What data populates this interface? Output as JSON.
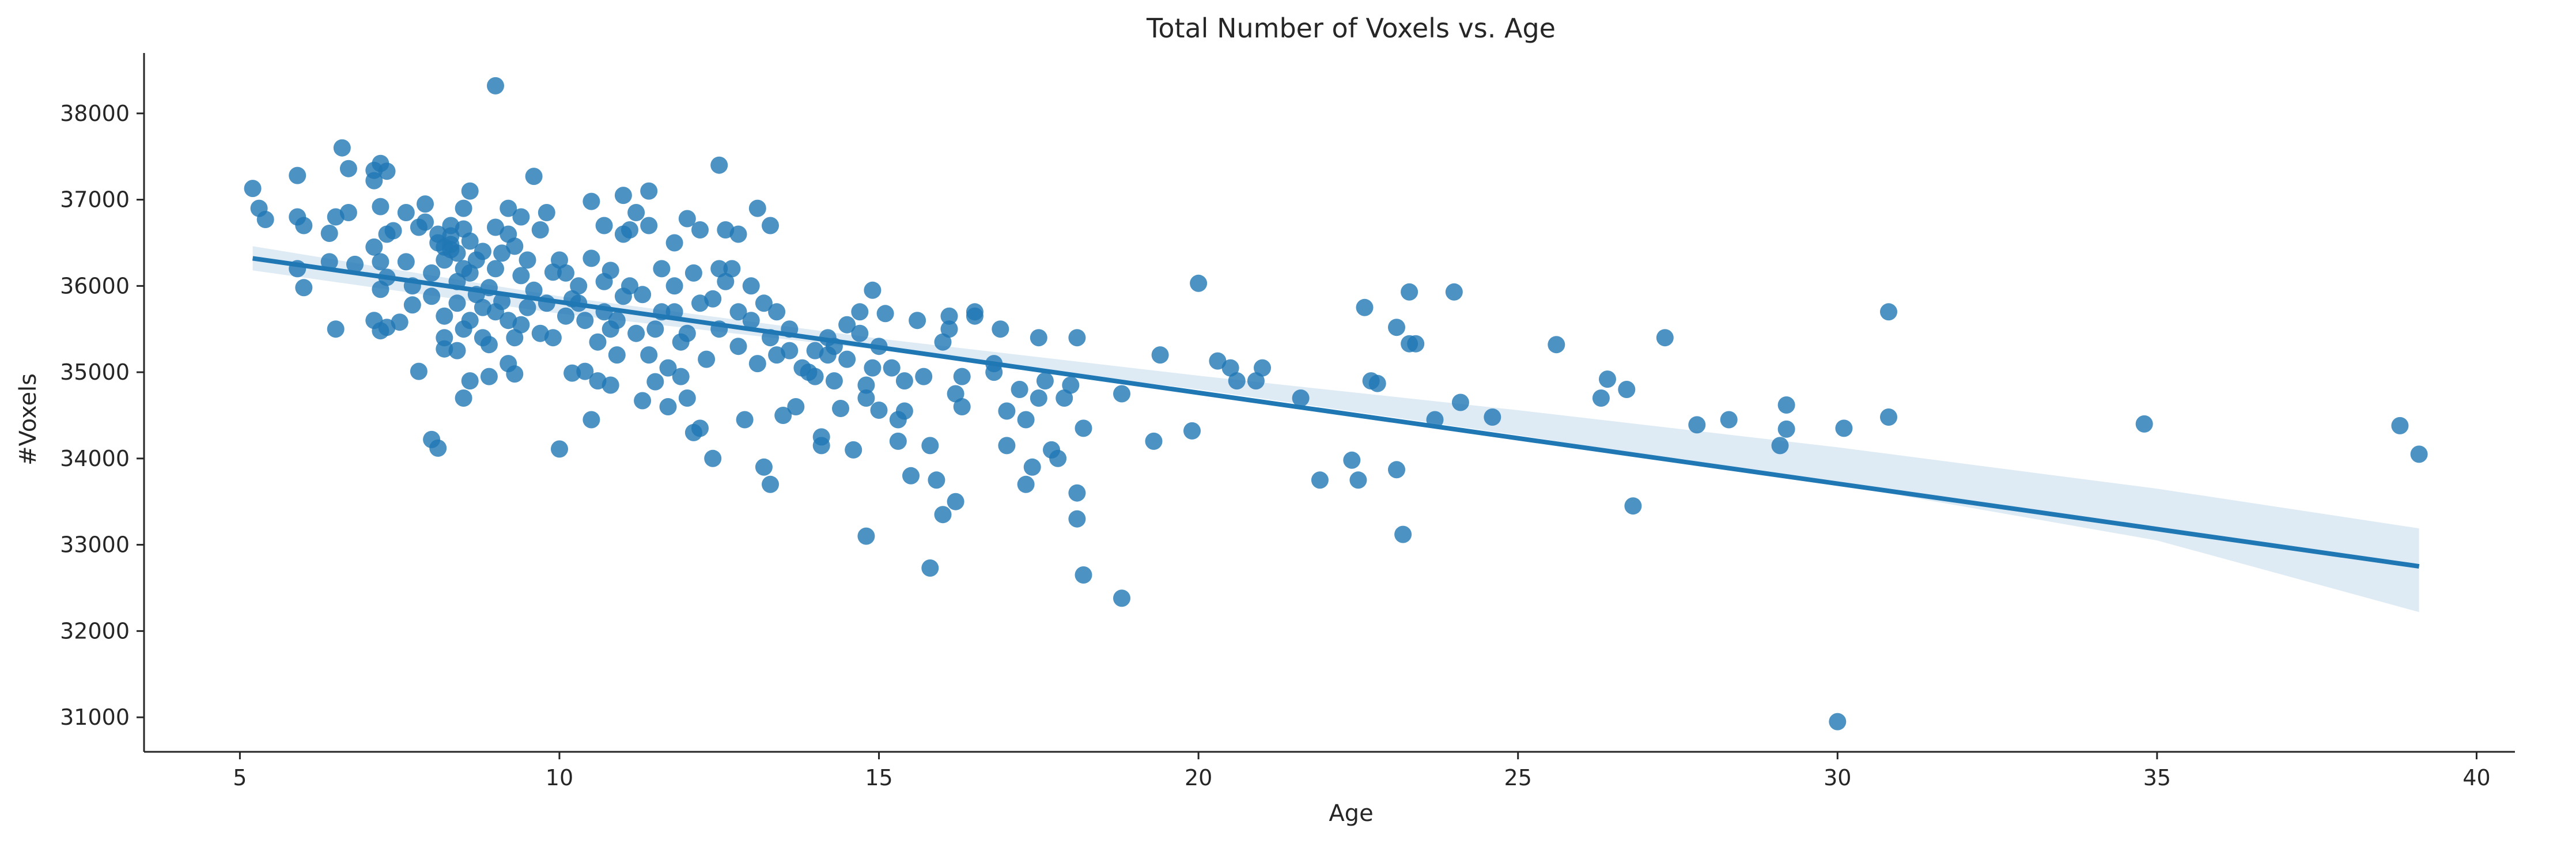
{
  "chart_data": {
    "type": "scatter",
    "title": "Total Number of Voxels vs. Age",
    "xlabel": "Age",
    "ylabel": "#Voxels",
    "xlim": [
      3.5,
      40.6
    ],
    "ylim": [
      30600,
      38700
    ],
    "xticks": [
      5,
      10,
      15,
      20,
      25,
      30,
      35,
      40
    ],
    "yticks": [
      31000,
      32000,
      33000,
      34000,
      35000,
      36000,
      37000,
      38000
    ],
    "xtick_labels": [
      "5",
      "10",
      "15",
      "20",
      "25",
      "30",
      "35",
      "40"
    ],
    "ytick_labels": [
      "31000",
      "32000",
      "33000",
      "34000",
      "35000",
      "36000",
      "37000",
      "38000"
    ],
    "grid": false,
    "point_color": "#1f77b4",
    "line_color": "#1f77b4",
    "band_color": "#1f77b4",
    "regression": {
      "x": [
        5.2,
        39.1
      ],
      "y": [
        36320,
        32750
      ]
    },
    "confidence_band": {
      "x": [
        5.2,
        10,
        15,
        20,
        25,
        30,
        35,
        39.1
      ],
      "lower": [
        36180,
        35680,
        35260,
        34800,
        34270,
        33700,
        33050,
        32220
      ],
      "upper": [
        36460,
        35880,
        35390,
        34960,
        34560,
        34130,
        33650,
        33190
      ]
    },
    "points": [
      [
        5.2,
        37130
      ],
      [
        5.3,
        36900
      ],
      [
        5.4,
        36770
      ],
      [
        5.9,
        37280
      ],
      [
        5.9,
        36800
      ],
      [
        6.0,
        36700
      ],
      [
        5.9,
        36200
      ],
      [
        6.0,
        35980
      ],
      [
        6.4,
        36280
      ],
      [
        6.4,
        36610
      ],
      [
        6.5,
        36800
      ],
      [
        6.5,
        35500
      ],
      [
        6.6,
        37600
      ],
      [
        6.7,
        37360
      ],
      [
        6.7,
        36850
      ],
      [
        6.8,
        36250
      ],
      [
        7.1,
        37340
      ],
      [
        7.1,
        37220
      ],
      [
        7.2,
        37420
      ],
      [
        7.3,
        37330
      ],
      [
        7.2,
        36920
      ],
      [
        7.1,
        36450
      ],
      [
        7.2,
        36280
      ],
      [
        7.3,
        36100
      ],
      [
        7.2,
        35960
      ],
      [
        7.1,
        35600
      ],
      [
        7.2,
        35480
      ],
      [
        7.3,
        35520
      ],
      [
        7.3,
        36600
      ],
      [
        7.4,
        36640
      ],
      [
        7.5,
        35580
      ],
      [
        7.6,
        36850
      ],
      [
        7.6,
        36280
      ],
      [
        7.7,
        35780
      ],
      [
        7.7,
        36000
      ],
      [
        7.8,
        35010
      ],
      [
        7.8,
        36680
      ],
      [
        7.9,
        36950
      ],
      [
        7.9,
        36740
      ],
      [
        8.0,
        36150
      ],
      [
        8.0,
        35880
      ],
      [
        8.0,
        34220
      ],
      [
        8.1,
        34120
      ],
      [
        8.1,
        36600
      ],
      [
        8.1,
        36500
      ],
      [
        8.2,
        36450
      ],
      [
        8.2,
        36300
      ],
      [
        8.2,
        35650
      ],
      [
        8.2,
        35400
      ],
      [
        8.2,
        35270
      ],
      [
        8.3,
        36700
      ],
      [
        8.3,
        36580
      ],
      [
        8.3,
        36480
      ],
      [
        8.3,
        36420
      ],
      [
        8.4,
        36380
      ],
      [
        8.4,
        36050
      ],
      [
        8.4,
        35800
      ],
      [
        8.4,
        35250
      ],
      [
        8.5,
        36900
      ],
      [
        8.5,
        36660
      ],
      [
        8.5,
        36200
      ],
      [
        8.5,
        35500
      ],
      [
        8.5,
        34700
      ],
      [
        8.6,
        37100
      ],
      [
        8.6,
        36520
      ],
      [
        8.6,
        36150
      ],
      [
        8.6,
        35600
      ],
      [
        8.6,
        34900
      ],
      [
        8.7,
        36300
      ],
      [
        8.7,
        35900
      ],
      [
        8.8,
        36400
      ],
      [
        8.8,
        35750
      ],
      [
        8.8,
        35400
      ],
      [
        8.9,
        35980
      ],
      [
        8.9,
        35320
      ],
      [
        8.9,
        34950
      ],
      [
        9.0,
        38320
      ],
      [
        9.0,
        36680
      ],
      [
        9.0,
        36200
      ],
      [
        9.0,
        35700
      ],
      [
        9.1,
        36380
      ],
      [
        9.1,
        35820
      ],
      [
        9.2,
        36900
      ],
      [
        9.2,
        36600
      ],
      [
        9.2,
        35600
      ],
      [
        9.2,
        35100
      ],
      [
        9.3,
        34980
      ],
      [
        9.3,
        36460
      ],
      [
        9.3,
        35400
      ],
      [
        9.4,
        36800
      ],
      [
        9.4,
        36120
      ],
      [
        9.4,
        35550
      ],
      [
        9.5,
        35750
      ],
      [
        9.5,
        36300
      ],
      [
        9.6,
        37270
      ],
      [
        9.6,
        35950
      ],
      [
        9.7,
        36650
      ],
      [
        9.7,
        35450
      ],
      [
        9.8,
        36850
      ],
      [
        9.8,
        35800
      ],
      [
        9.9,
        36160
      ],
      [
        9.9,
        35400
      ],
      [
        10.0,
        34110
      ],
      [
        10.0,
        36300
      ],
      [
        10.1,
        36150
      ],
      [
        10.1,
        35650
      ],
      [
        10.2,
        34990
      ],
      [
        10.2,
        35850
      ],
      [
        10.3,
        36000
      ],
      [
        10.3,
        35800
      ],
      [
        10.4,
        35600
      ],
      [
        10.4,
        35010
      ],
      [
        10.5,
        36980
      ],
      [
        10.5,
        36320
      ],
      [
        10.5,
        34450
      ],
      [
        10.6,
        34900
      ],
      [
        10.6,
        35350
      ],
      [
        10.7,
        36700
      ],
      [
        10.7,
        36050
      ],
      [
        10.7,
        35700
      ],
      [
        10.8,
        36180
      ],
      [
        10.8,
        35500
      ],
      [
        10.8,
        34850
      ],
      [
        10.9,
        35200
      ],
      [
        10.9,
        35600
      ],
      [
        11.0,
        37050
      ],
      [
        11.0,
        36600
      ],
      [
        11.0,
        35880
      ],
      [
        11.1,
        36650
      ],
      [
        11.1,
        36000
      ],
      [
        11.2,
        36850
      ],
      [
        11.2,
        35450
      ],
      [
        11.3,
        34670
      ],
      [
        11.3,
        35900
      ],
      [
        11.4,
        37100
      ],
      [
        11.4,
        36700
      ],
      [
        11.4,
        35200
      ],
      [
        11.5,
        34890
      ],
      [
        11.5,
        35500
      ],
      [
        11.6,
        36200
      ],
      [
        11.6,
        35700
      ],
      [
        11.7,
        34600
      ],
      [
        11.7,
        35050
      ],
      [
        11.8,
        36500
      ],
      [
        11.8,
        36000
      ],
      [
        11.8,
        35700
      ],
      [
        11.9,
        35350
      ],
      [
        11.9,
        34950
      ],
      [
        12.0,
        36780
      ],
      [
        12.0,
        35450
      ],
      [
        12.0,
        34700
      ],
      [
        12.1,
        36150
      ],
      [
        12.1,
        34300
      ],
      [
        12.2,
        36650
      ],
      [
        12.2,
        35800
      ],
      [
        12.2,
        34350
      ],
      [
        12.3,
        35150
      ],
      [
        12.4,
        35850
      ],
      [
        12.4,
        34000
      ],
      [
        12.5,
        37400
      ],
      [
        12.5,
        36200
      ],
      [
        12.5,
        35500
      ],
      [
        12.6,
        36650
      ],
      [
        12.6,
        36050
      ],
      [
        12.7,
        36200
      ],
      [
        12.8,
        36600
      ],
      [
        12.8,
        35700
      ],
      [
        12.8,
        35300
      ],
      [
        12.9,
        34450
      ],
      [
        13.0,
        36000
      ],
      [
        13.0,
        35600
      ],
      [
        13.1,
        36900
      ],
      [
        13.1,
        35100
      ],
      [
        13.2,
        35800
      ],
      [
        13.2,
        33900
      ],
      [
        13.3,
        36700
      ],
      [
        13.3,
        35400
      ],
      [
        13.3,
        33700
      ],
      [
        13.4,
        35700
      ],
      [
        13.4,
        35200
      ],
      [
        13.5,
        34500
      ],
      [
        13.6,
        35500
      ],
      [
        13.6,
        35250
      ],
      [
        13.7,
        34600
      ],
      [
        13.8,
        35050
      ],
      [
        13.9,
        35000
      ],
      [
        14.0,
        35250
      ],
      [
        14.0,
        34950
      ],
      [
        14.1,
        34250
      ],
      [
        14.1,
        34150
      ],
      [
        14.2,
        35400
      ],
      [
        14.2,
        35200
      ],
      [
        14.3,
        35300
      ],
      [
        14.3,
        34900
      ],
      [
        14.4,
        34580
      ],
      [
        14.5,
        35550
      ],
      [
        14.5,
        35150
      ],
      [
        14.6,
        34100
      ],
      [
        14.7,
        35700
      ],
      [
        14.7,
        35450
      ],
      [
        14.8,
        34850
      ],
      [
        14.8,
        34700
      ],
      [
        14.8,
        33100
      ],
      [
        14.9,
        35950
      ],
      [
        14.9,
        35050
      ],
      [
        15.0,
        34560
      ],
      [
        15.0,
        35300
      ],
      [
        15.1,
        35680
      ],
      [
        15.2,
        35050
      ],
      [
        15.3,
        34200
      ],
      [
        15.3,
        34450
      ],
      [
        15.4,
        34550
      ],
      [
        15.4,
        34900
      ],
      [
        15.5,
        33800
      ],
      [
        15.6,
        35600
      ],
      [
        15.7,
        34950
      ],
      [
        15.8,
        32730
      ],
      [
        15.8,
        34150
      ],
      [
        15.9,
        33750
      ],
      [
        16.0,
        33350
      ],
      [
        16.0,
        35350
      ],
      [
        16.1,
        35500
      ],
      [
        16.1,
        35650
      ],
      [
        16.2,
        34750
      ],
      [
        16.2,
        33500
      ],
      [
        16.3,
        34600
      ],
      [
        16.3,
        34950
      ],
      [
        16.5,
        35650
      ],
      [
        16.5,
        35700
      ],
      [
        16.8,
        35100
      ],
      [
        16.8,
        35000
      ],
      [
        16.9,
        35500
      ],
      [
        17.0,
        34150
      ],
      [
        17.0,
        34550
      ],
      [
        17.2,
        34800
      ],
      [
        17.3,
        34450
      ],
      [
        17.3,
        33700
      ],
      [
        17.4,
        33900
      ],
      [
        17.5,
        34700
      ],
      [
        17.5,
        35400
      ],
      [
        17.6,
        34900
      ],
      [
        17.7,
        34100
      ],
      [
        17.8,
        34000
      ],
      [
        17.9,
        34700
      ],
      [
        18.0,
        34850
      ],
      [
        18.1,
        35400
      ],
      [
        18.1,
        33600
      ],
      [
        18.1,
        33300
      ],
      [
        18.2,
        32650
      ],
      [
        18.2,
        34350
      ],
      [
        18.8,
        34750
      ],
      [
        18.8,
        32380
      ],
      [
        19.3,
        34200
      ],
      [
        19.4,
        35200
      ],
      [
        19.9,
        34320
      ],
      [
        20.0,
        36030
      ],
      [
        20.3,
        35130
      ],
      [
        20.5,
        35050
      ],
      [
        20.6,
        34900
      ],
      [
        20.9,
        34900
      ],
      [
        21.0,
        35050
      ],
      [
        21.6,
        34700
      ],
      [
        21.9,
        33750
      ],
      [
        22.4,
        33980
      ],
      [
        22.5,
        33750
      ],
      [
        22.6,
        35750
      ],
      [
        22.7,
        34900
      ],
      [
        22.8,
        34870
      ],
      [
        23.1,
        33870
      ],
      [
        23.1,
        35520
      ],
      [
        23.2,
        33120
      ],
      [
        23.3,
        35330
      ],
      [
        23.4,
        35330
      ],
      [
        23.3,
        35930
      ],
      [
        23.7,
        34450
      ],
      [
        24.0,
        35930
      ],
      [
        24.1,
        34650
      ],
      [
        24.6,
        34480
      ],
      [
        25.6,
        35320
      ],
      [
        26.3,
        34700
      ],
      [
        26.4,
        34920
      ],
      [
        26.7,
        34800
      ],
      [
        26.8,
        33450
      ],
      [
        27.3,
        35400
      ],
      [
        27.8,
        34390
      ],
      [
        28.3,
        34450
      ],
      [
        29.1,
        34150
      ],
      [
        29.2,
        34340
      ],
      [
        29.2,
        34620
      ],
      [
        30.0,
        30950
      ],
      [
        30.1,
        34350
      ],
      [
        30.8,
        34480
      ],
      [
        30.8,
        35700
      ],
      [
        34.8,
        34400
      ],
      [
        38.8,
        34380
      ],
      [
        39.1,
        34050
      ]
    ]
  }
}
